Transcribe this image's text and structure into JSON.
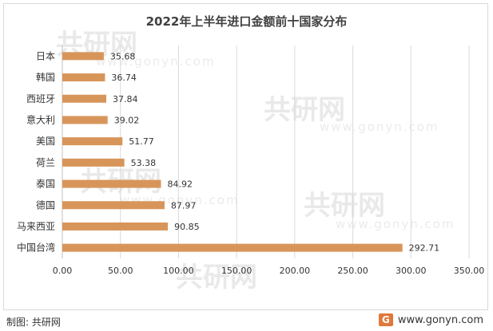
{
  "title": "2022年上半年进口金额前十国家分布",
  "footer": {
    "source_label": "制图: 共研网",
    "website": "www.gonyn.com",
    "logo_text": "G"
  },
  "watermark": {
    "cn": "共研网",
    "en": "www.gonyn.com"
  },
  "colors": {
    "bar": "#D8955A",
    "grid": "#d9d9d9",
    "axis_text": "#333333"
  },
  "chart_data": {
    "type": "bar",
    "orientation": "horizontal",
    "title": "2022年上半年进口金额前十国家分布",
    "categories": [
      "日本",
      "韩国",
      "西班牙",
      "意大利",
      "美国",
      "荷兰",
      "泰国",
      "德国",
      "马来西亚",
      "中国台湾"
    ],
    "values": [
      35.68,
      36.74,
      37.84,
      39.02,
      51.77,
      53.38,
      84.92,
      87.97,
      90.85,
      292.71
    ],
    "value_labels": [
      "35.68",
      "36.74",
      "37.84",
      "39.02",
      "51.77",
      "53.38",
      "84.92",
      "87.97",
      "90.85",
      "292.71"
    ],
    "xlim": [
      0,
      350
    ],
    "x_ticks": [
      0,
      50,
      100,
      150,
      200,
      250,
      300,
      350
    ],
    "x_tick_labels": [
      "0.00",
      "50.00",
      "100.00",
      "150.00",
      "200.00",
      "250.00",
      "300.00",
      "350.00"
    ],
    "grid": true,
    "legend": "none"
  }
}
